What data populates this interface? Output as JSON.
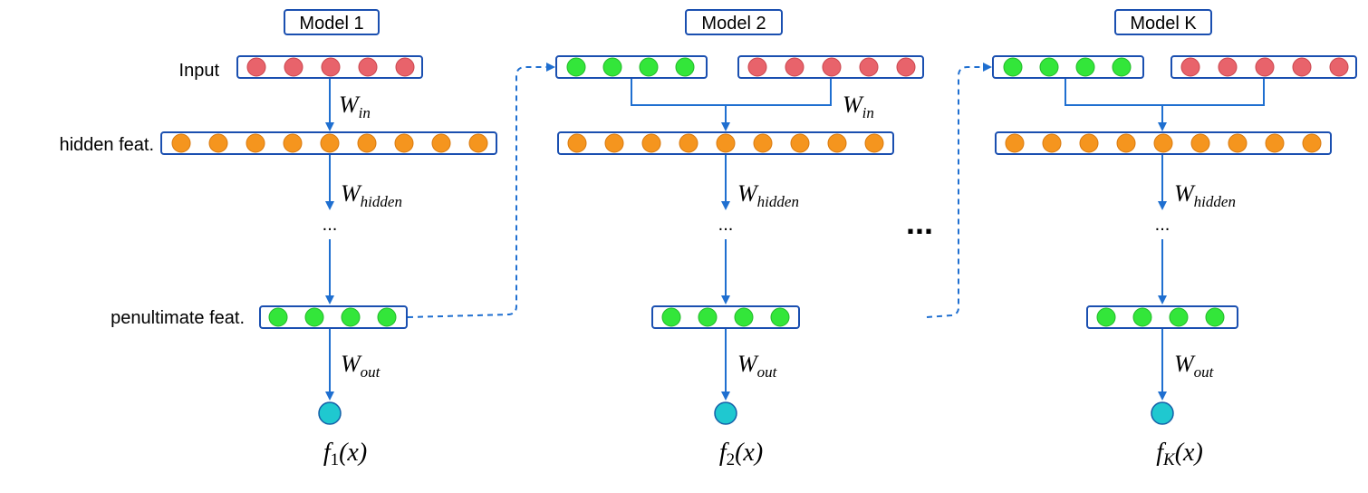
{
  "colors": {
    "line": "#1f6fd0",
    "box_stroke": "#1a4fb0",
    "input_node": "#e8636b",
    "hidden_node": "#f5951e",
    "feature_node": "#33e63a",
    "output_node": "#1fc8d0",
    "node_stroke_input": "#c9454d",
    "node_stroke_hidden": "#d87a10",
    "node_stroke_feature": "#22b82a",
    "node_stroke_output": "#1560a8"
  },
  "row_labels": {
    "input": "Input",
    "hidden": "hidden feat.",
    "penultimate": "penultimate feat."
  },
  "ellipsis_between_models": "...",
  "models": [
    {
      "title": "Model 1",
      "w_in": {
        "base": "W",
        "sub": "in"
      },
      "w_hidden": {
        "base": "W",
        "sub": "hidden"
      },
      "w_out": {
        "base": "W",
        "sub": "out"
      },
      "dots": "...",
      "output": {
        "base": "f",
        "sub": "1",
        "arg": "(x)"
      },
      "input_nodes": 5,
      "extra_feature_nodes": 0,
      "hidden_nodes": 9,
      "penultimate_nodes": 4
    },
    {
      "title": "Model 2",
      "w_in": {
        "base": "W",
        "sub": "in"
      },
      "w_hidden": {
        "base": "W",
        "sub": "hidden"
      },
      "w_out": {
        "base": "W",
        "sub": "out"
      },
      "dots": "...",
      "output": {
        "base": "f",
        "sub": "2",
        "arg": "(x)"
      },
      "input_nodes": 5,
      "extra_feature_nodes": 4,
      "hidden_nodes": 9,
      "penultimate_nodes": 4
    },
    {
      "title": "Model K",
      "w_in": {
        "base": "W",
        "sub": "in"
      },
      "w_hidden": {
        "base": "W",
        "sub": "hidden"
      },
      "w_out": {
        "base": "W",
        "sub": "out"
      },
      "dots": "...",
      "output": {
        "base": "f",
        "sub": "K",
        "arg": "(x)"
      },
      "input_nodes": 5,
      "extra_feature_nodes": 4,
      "hidden_nodes": 9,
      "penultimate_nodes": 4
    }
  ]
}
